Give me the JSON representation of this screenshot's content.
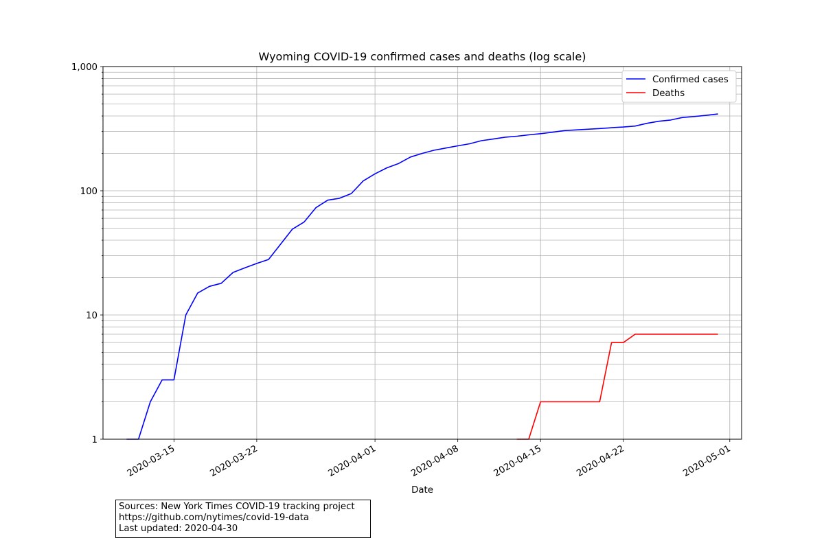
{
  "chart_data": {
    "type": "line",
    "title": "Wyoming COVID-19 confirmed cases and deaths (log scale)",
    "xlabel": "Date",
    "ylabel": "",
    "yscale": "log",
    "ylim": [
      1,
      1000
    ],
    "xlim": [
      "2020-03-09",
      "2020-05-02"
    ],
    "grid": true,
    "legend_position": "top-right",
    "x_ticks": [
      "2020-03-15",
      "2020-03-22",
      "2020-04-01",
      "2020-04-08",
      "2020-04-15",
      "2020-04-22",
      "2020-05-01"
    ],
    "y_ticks": [
      {
        "value": 1,
        "label": "1"
      },
      {
        "value": 10,
        "label": "10"
      },
      {
        "value": 100,
        "label": "100"
      },
      {
        "value": 1000,
        "label": "1,000"
      }
    ],
    "series": [
      {
        "name": "Confirmed cases",
        "color": "#0000ff",
        "points": [
          [
            "2020-03-11",
            1
          ],
          [
            "2020-03-12",
            1
          ],
          [
            "2020-03-13",
            2
          ],
          [
            "2020-03-14",
            3
          ],
          [
            "2020-03-15",
            3
          ],
          [
            "2020-03-16",
            10
          ],
          [
            "2020-03-17",
            15
          ],
          [
            "2020-03-18",
            17
          ],
          [
            "2020-03-19",
            18
          ],
          [
            "2020-03-20",
            22
          ],
          [
            "2020-03-21",
            24
          ],
          [
            "2020-03-22",
            26
          ],
          [
            "2020-03-23",
            28
          ],
          [
            "2020-03-24",
            37
          ],
          [
            "2020-03-25",
            49
          ],
          [
            "2020-03-26",
            56
          ],
          [
            "2020-03-27",
            73
          ],
          [
            "2020-03-28",
            84
          ],
          [
            "2020-03-29",
            87
          ],
          [
            "2020-03-30",
            95
          ],
          [
            "2020-03-31",
            120
          ],
          [
            "2020-04-01",
            137
          ],
          [
            "2020-04-02",
            153
          ],
          [
            "2020-04-03",
            166
          ],
          [
            "2020-04-04",
            187
          ],
          [
            "2020-04-05",
            200
          ],
          [
            "2020-04-06",
            212
          ],
          [
            "2020-04-07",
            221
          ],
          [
            "2020-04-08",
            230
          ],
          [
            "2020-04-09",
            239
          ],
          [
            "2020-04-10",
            253
          ],
          [
            "2020-04-11",
            261
          ],
          [
            "2020-04-12",
            270
          ],
          [
            "2020-04-13",
            275
          ],
          [
            "2020-04-14",
            282
          ],
          [
            "2020-04-15",
            288
          ],
          [
            "2020-04-16",
            296
          ],
          [
            "2020-04-17",
            305
          ],
          [
            "2020-04-18",
            309
          ],
          [
            "2020-04-19",
            313
          ],
          [
            "2020-04-20",
            317
          ],
          [
            "2020-04-21",
            322
          ],
          [
            "2020-04-22",
            326
          ],
          [
            "2020-04-23",
            332
          ],
          [
            "2020-04-24",
            349
          ],
          [
            "2020-04-25",
            363
          ],
          [
            "2020-04-26",
            371
          ],
          [
            "2020-04-27",
            389
          ],
          [
            "2020-04-28",
            396
          ],
          [
            "2020-04-29",
            405
          ],
          [
            "2020-04-30",
            415
          ]
        ]
      },
      {
        "name": "Deaths",
        "color": "#ff0000",
        "points": [
          [
            "2020-04-13",
            1
          ],
          [
            "2020-04-14",
            1
          ],
          [
            "2020-04-15",
            2
          ],
          [
            "2020-04-16",
            2
          ],
          [
            "2020-04-17",
            2
          ],
          [
            "2020-04-18",
            2
          ],
          [
            "2020-04-19",
            2
          ],
          [
            "2020-04-20",
            2
          ],
          [
            "2020-04-21",
            6
          ],
          [
            "2020-04-22",
            6
          ],
          [
            "2020-04-23",
            7
          ],
          [
            "2020-04-24",
            7
          ],
          [
            "2020-04-25",
            7
          ],
          [
            "2020-04-26",
            7
          ],
          [
            "2020-04-27",
            7
          ],
          [
            "2020-04-28",
            7
          ],
          [
            "2020-04-29",
            7
          ],
          [
            "2020-04-30",
            7
          ]
        ]
      }
    ]
  },
  "source_note": {
    "line1": "Sources: New York Times COVID-19 tracking project",
    "line2": "https://github.com/nytimes/covid-19-data",
    "line3": "Last updated: 2020-04-30"
  }
}
